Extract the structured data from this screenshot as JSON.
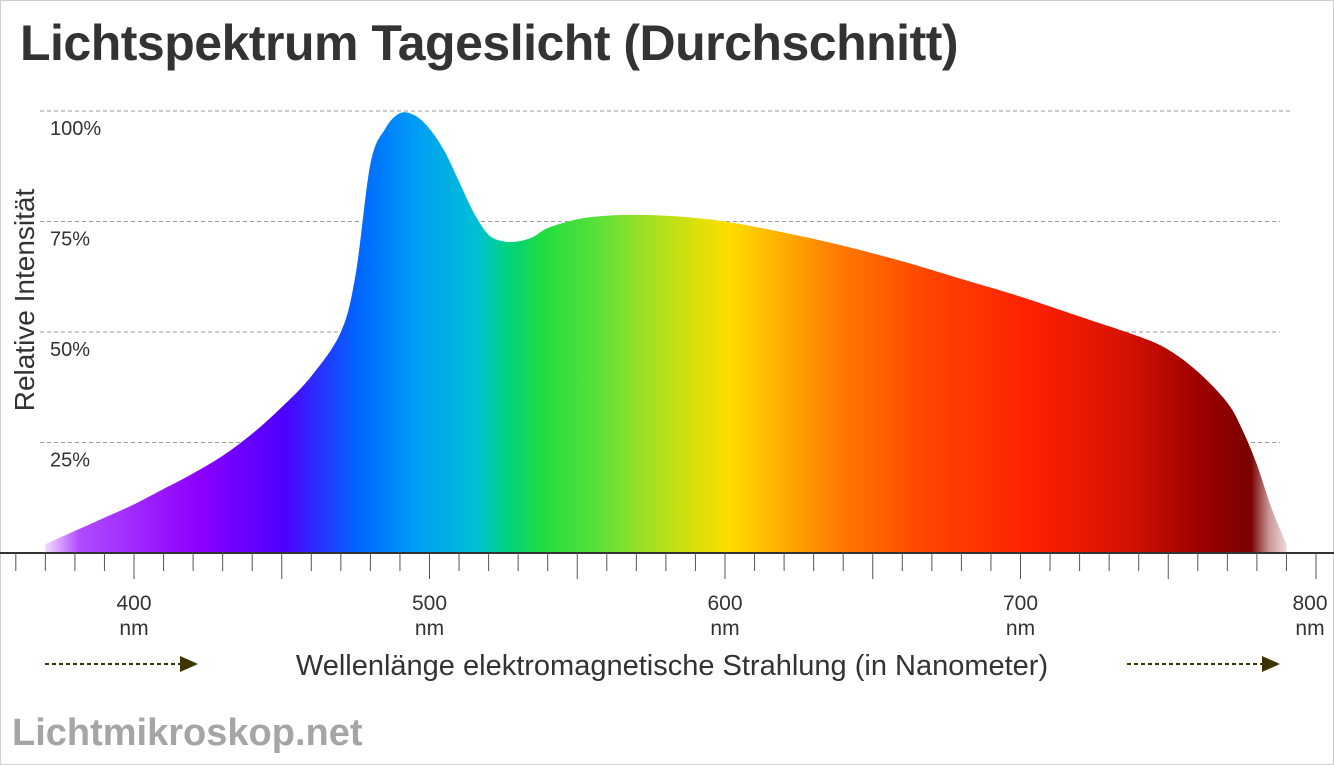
{
  "title": "Lichtspektrum Tageslicht (Durchschnitt)",
  "watermark": "Lichtmikroskop.net",
  "chart_data": {
    "type": "area",
    "title": "Lichtspektrum Tageslicht (Durchschnitt)",
    "xlabel": "Wellenlänge elektromagnetische Strahlung (in Nanometer)",
    "ylabel": "Relative Intensität",
    "x_unit": "nm",
    "xlim": [
      370,
      790
    ],
    "ylim": [
      0,
      100
    ],
    "x_ticks": [
      400,
      500,
      600,
      700,
      800
    ],
    "y_ticks": [
      25,
      50,
      75,
      100
    ],
    "y_tick_labels": [
      "25%",
      "50%",
      "75%",
      "100%"
    ],
    "grid": "horizontal-dashed",
    "series": [
      {
        "x": [
          370,
          380,
          390,
          400,
          410,
          420,
          430,
          440,
          450,
          460,
          470,
          475,
          480,
          485,
          490,
          495,
          500,
          505,
          510,
          515,
          520,
          525,
          530,
          535,
          540,
          550,
          560,
          570,
          580,
          590,
          600,
          620,
          640,
          660,
          680,
          700,
          720,
          740,
          750,
          760,
          770,
          775,
          780,
          785,
          790
        ],
        "y": [
          2,
          5,
          8,
          11,
          14.5,
          18,
          22,
          27,
          33,
          40,
          50,
          63,
          88,
          96,
          99.5,
          99,
          96,
          91,
          84,
          77,
          72,
          70.5,
          70.5,
          71.5,
          73.5,
          75.5,
          76.3,
          76.5,
          76.3,
          75.8,
          75,
          72.5,
          69.5,
          66,
          62,
          58,
          53.5,
          49,
          46,
          41,
          34,
          28,
          20,
          10,
          2
        ]
      }
    ]
  }
}
